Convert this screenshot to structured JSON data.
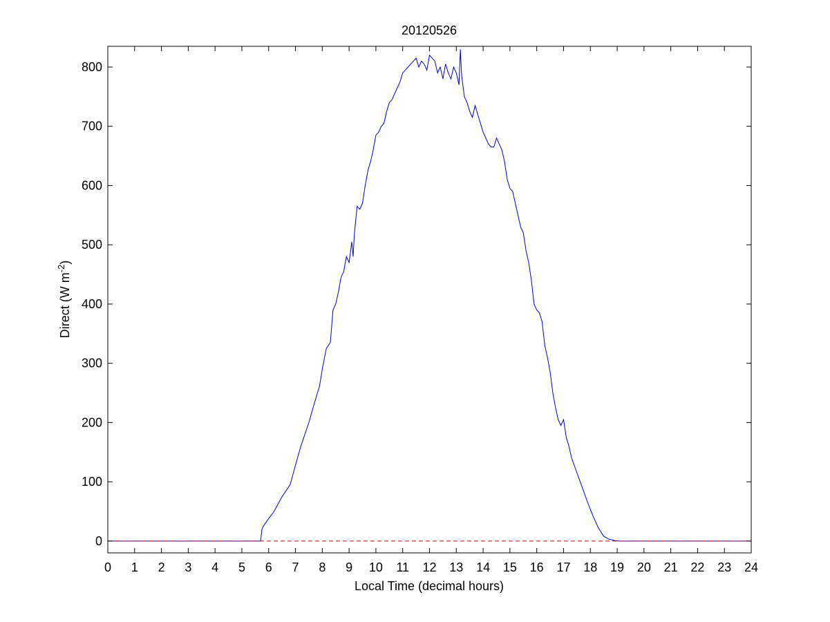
{
  "chart_data": {
    "type": "line",
    "title": "20120526",
    "xlabel": "Local Time (decimal hours)",
    "ylabel_main": "Direct (W m",
    "ylabel_sup": "-2",
    "ylabel_close": ")",
    "xlim": [
      0,
      24
    ],
    "ylim": [
      -20,
      835
    ],
    "xticks": [
      0,
      1,
      2,
      3,
      4,
      5,
      6,
      7,
      8,
      9,
      10,
      11,
      12,
      13,
      14,
      15,
      16,
      17,
      18,
      19,
      20,
      21,
      22,
      23,
      24
    ],
    "yticks": [
      0,
      100,
      200,
      300,
      400,
      500,
      600,
      700,
      800
    ],
    "grid": false,
    "series": [
      {
        "color": "#0000cc",
        "style": "solid",
        "x": [
          0,
          5.7,
          5.75,
          5.8,
          6.0,
          6.2,
          6.5,
          6.8,
          7.0,
          7.2,
          7.5,
          7.7,
          7.9,
          8.0,
          8.15,
          8.3,
          8.4,
          8.5,
          8.6,
          8.7,
          8.8,
          8.9,
          9.0,
          9.1,
          9.15,
          9.2,
          9.3,
          9.4,
          9.5,
          9.6,
          9.7,
          9.8,
          9.9,
          10.0,
          10.1,
          10.2,
          10.3,
          10.4,
          10.5,
          10.6,
          10.7,
          10.8,
          10.9,
          11.0,
          11.1,
          11.2,
          11.3,
          11.4,
          11.5,
          11.6,
          11.7,
          11.8,
          11.9,
          12.0,
          12.1,
          12.2,
          12.3,
          12.4,
          12.5,
          12.6,
          12.7,
          12.8,
          12.9,
          13.0,
          13.1,
          13.15,
          13.2,
          13.3,
          13.4,
          13.5,
          13.6,
          13.7,
          13.8,
          13.9,
          14.0,
          14.1,
          14.2,
          14.3,
          14.4,
          14.5,
          14.6,
          14.7,
          14.8,
          14.9,
          15.0,
          15.1,
          15.2,
          15.3,
          15.4,
          15.5,
          15.6,
          15.7,
          15.8,
          15.9,
          16.0,
          16.1,
          16.2,
          16.3,
          16.4,
          16.5,
          16.6,
          16.7,
          16.8,
          16.9,
          17.0,
          17.1,
          17.2,
          17.3,
          17.5,
          17.7,
          17.9,
          18.1,
          18.3,
          18.5,
          18.7,
          18.9,
          19.05,
          19.2,
          24
        ],
        "y": [
          0,
          0,
          20,
          25,
          38,
          50,
          75,
          95,
          128,
          160,
          200,
          232,
          262,
          290,
          325,
          335,
          390,
          400,
          420,
          445,
          455,
          480,
          470,
          505,
          480,
          520,
          565,
          560,
          570,
          600,
          625,
          640,
          660,
          685,
          690,
          700,
          705,
          725,
          740,
          745,
          755,
          765,
          775,
          790,
          795,
          800,
          805,
          810,
          815,
          800,
          810,
          805,
          795,
          820,
          815,
          810,
          790,
          800,
          780,
          805,
          790,
          780,
          800,
          790,
          770,
          830,
          785,
          750,
          740,
          725,
          715,
          735,
          720,
          705,
          690,
          680,
          670,
          665,
          665,
          680,
          670,
          660,
          640,
          610,
          595,
          590,
          570,
          550,
          530,
          520,
          490,
          470,
          440,
          400,
          390,
          385,
          370,
          330,
          310,
          285,
          250,
          225,
          205,
          195,
          205,
          175,
          160,
          140,
          115,
          90,
          65,
          42,
          22,
          8,
          3,
          1,
          0,
          0,
          0
        ]
      },
      {
        "color": "#cc0000",
        "style": "dashed",
        "x": [
          0,
          24
        ],
        "y": [
          0,
          0
        ]
      }
    ]
  }
}
